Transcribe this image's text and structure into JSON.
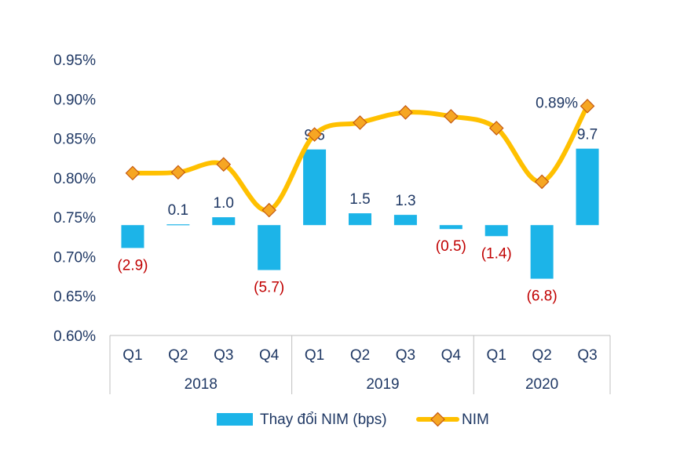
{
  "chart_data": {
    "type": "bar+line",
    "groups": [
      {
        "label": "2018",
        "quarters": [
          "Q1",
          "Q2",
          "Q3",
          "Q4"
        ]
      },
      {
        "label": "2019",
        "quarters": [
          "Q1",
          "Q2",
          "Q3",
          "Q4"
        ]
      },
      {
        "label": "2020",
        "quarters": [
          "Q1",
          "Q2",
          "Q3"
        ]
      }
    ],
    "categories": [
      "Q1",
      "Q2",
      "Q3",
      "Q4",
      "Q1",
      "Q2",
      "Q3",
      "Q4",
      "Q1",
      "Q2",
      "Q3"
    ],
    "series": [
      {
        "name": "Thay đổi NIM (bps)",
        "type": "bar",
        "color": "#1CB4E8",
        "values": [
          -2.9,
          0.1,
          1.0,
          -5.7,
          9.6,
          1.5,
          1.3,
          -0.5,
          -1.4,
          -6.8,
          9.7
        ],
        "labels": [
          "(2.9)",
          "0.1",
          "1.0",
          "(5.7)",
          "9.6",
          "1.5",
          "1.3",
          "(0.5)",
          "(1.4)",
          "(6.8)",
          "9.7"
        ],
        "baseline_nim": 0.74
      },
      {
        "name": "NIM",
        "type": "line",
        "color": "#FFC000",
        "marker_color": "#F6A623",
        "values": [
          0.806,
          0.807,
          0.817,
          0.759,
          0.855,
          0.87,
          0.883,
          0.878,
          0.863,
          0.795,
          0.891
        ],
        "last_label": "0.89%"
      }
    ],
    "y_ticks": [
      "0.95%",
      "0.90%",
      "0.85%",
      "0.80%",
      "0.75%",
      "0.70%",
      "0.65%",
      "0.60%"
    ],
    "ylim": [
      0.6,
      0.95
    ],
    "positive_label_color": "#1F3864",
    "negative_label_color": "#C00000",
    "legend_position": "bottom"
  }
}
